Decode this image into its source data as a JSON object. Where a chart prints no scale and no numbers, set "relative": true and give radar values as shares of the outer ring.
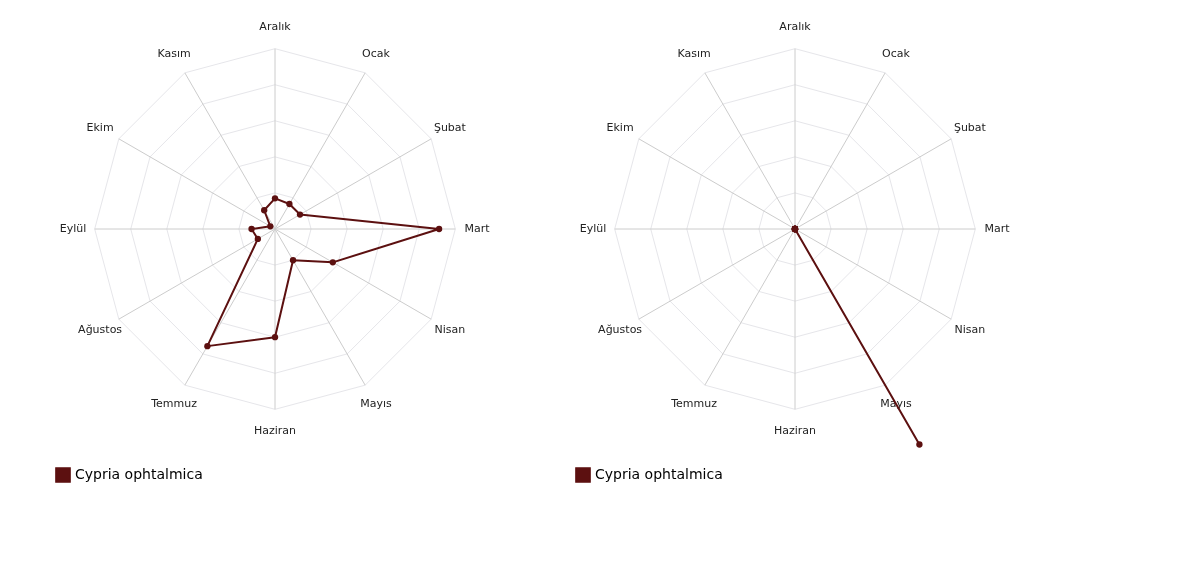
{
  "chart_data": [
    {
      "type": "radar",
      "relative": true,
      "categories": [
        "Aralık",
        "Ocak",
        "Şubat",
        "Mart",
        "Nisan",
        "Mayıs",
        "Haziran",
        "Temmuz",
        "Ağustos",
        "Eylül",
        "Ekim",
        "Kasım"
      ],
      "legend": "bottom",
      "marker": "circle",
      "series": [
        {
          "name": "Cypria ophtalmica",
          "color": "#5c1010",
          "values": [
            0.17,
            0.16,
            0.16,
            0.91,
            0.37,
            0.2,
            0.6,
            0.75,
            0.11,
            0.13,
            0.03,
            0.12
          ]
        }
      ]
    },
    {
      "type": "radar",
      "relative": true,
      "categories": [
        "Aralık",
        "Ocak",
        "Şubat",
        "Mart",
        "Nisan",
        "Mayıs",
        "Haziran",
        "Temmuz",
        "Ağustos",
        "Eylül",
        "Ekim",
        "Kasım"
      ],
      "legend": "bottom",
      "marker": "circle",
      "series": [
        {
          "name": "Cypria ophtalmica",
          "color": "#5c1010",
          "values": [
            0,
            0,
            0,
            0,
            0,
            1.38,
            0,
            0,
            0,
            0,
            0,
            0
          ]
        }
      ]
    }
  ]
}
